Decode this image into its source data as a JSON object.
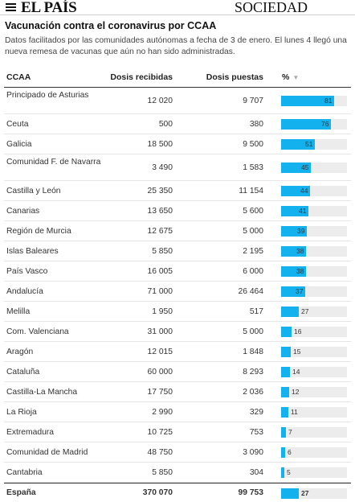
{
  "header": {
    "logo": "EL PAÍS",
    "section": "SOCIEDAD",
    "menu_icon": "hamburger-menu-icon"
  },
  "title": "Vacunación contra el coronavirus por CCAA",
  "subtitle": "Datos facilitados por las comunidades autónomas a fecha de 3 de enero. El lunes 4 llegó una nueva remesa de vacunas que aún no han sido administradas.",
  "colors": {
    "bar": "#13b1ee",
    "bar_track": "#ececec"
  },
  "table": {
    "columns": {
      "ccaa": "CCAA",
      "recibidas": "Dosis recibidas",
      "puestas": "Dosis puestas",
      "pct": "%",
      "sort_icon": "▼"
    },
    "rows": [
      {
        "name": "Principado de Asturias",
        "recibidas": "12 020",
        "puestas": "9 707",
        "pct": 81
      },
      {
        "name": "Ceuta",
        "recibidas": "500",
        "puestas": "380",
        "pct": 76
      },
      {
        "name": "Galicia",
        "recibidas": "18 500",
        "puestas": "9 500",
        "pct": 51
      },
      {
        "name": "Comunidad F. de Navarra",
        "recibidas": "3 490",
        "puestas": "1 583",
        "pct": 45
      },
      {
        "name": "Castilla y León",
        "recibidas": "25 350",
        "puestas": "11 154",
        "pct": 44
      },
      {
        "name": "Canarias",
        "recibidas": "13 650",
        "puestas": "5 600",
        "pct": 41
      },
      {
        "name": "Región de Murcia",
        "recibidas": "12 675",
        "puestas": "5 000",
        "pct": 39
      },
      {
        "name": "Islas Baleares",
        "recibidas": "5 850",
        "puestas": "2 195",
        "pct": 38
      },
      {
        "name": "País Vasco",
        "recibidas": "16 005",
        "puestas": "6 000",
        "pct": 38
      },
      {
        "name": "Andalucía",
        "recibidas": "71 000",
        "puestas": "26 464",
        "pct": 37
      },
      {
        "name": "Melilla",
        "recibidas": "1 950",
        "puestas": "517",
        "pct": 27
      },
      {
        "name": "Com. Valenciana",
        "recibidas": "31 000",
        "puestas": "5 000",
        "pct": 16
      },
      {
        "name": "Aragón",
        "recibidas": "12 015",
        "puestas": "1 848",
        "pct": 15
      },
      {
        "name": "Cataluña",
        "recibidas": "60 000",
        "puestas": "8 293",
        "pct": 14
      },
      {
        "name": "Castilla-La Mancha",
        "recibidas": "17 750",
        "puestas": "2 036",
        "pct": 12
      },
      {
        "name": "La Rioja",
        "recibidas": "2 990",
        "puestas": "329",
        "pct": 11
      },
      {
        "name": "Extremadura",
        "recibidas": "10 725",
        "puestas": "753",
        "pct": 7
      },
      {
        "name": "Comunidad de Madrid",
        "recibidas": "48 750",
        "puestas": "3 090",
        "pct": 6
      },
      {
        "name": "Cantabria",
        "recibidas": "5 850",
        "puestas": "304",
        "pct": 5
      }
    ],
    "total": {
      "name": "España",
      "recibidas": "370 070",
      "puestas": "99 753",
      "pct": 27
    }
  }
}
